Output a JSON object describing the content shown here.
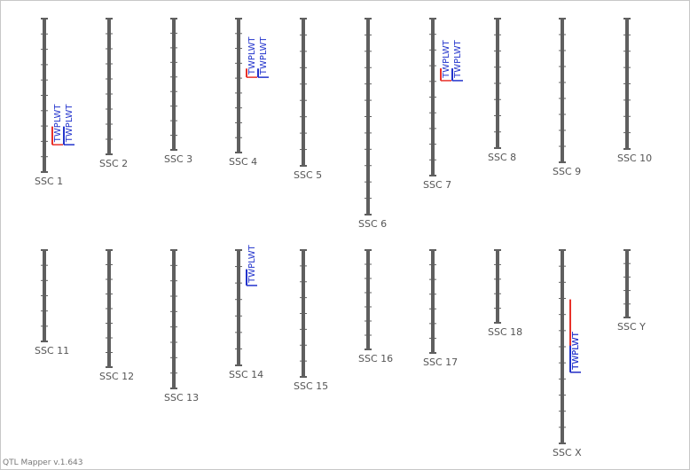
{
  "app": {
    "version_text": "QTL Mapper v.1.643"
  },
  "colors": {
    "chromosome": "#5f5f5f",
    "tick": "#5f5f5f",
    "label": "#555555",
    "qtl_red": "#e8312a",
    "qtl_blue": "#2233cc"
  },
  "chromosomes": [
    {
      "id": "chr-1",
      "label": "SSC 1",
      "ticks": 9,
      "qtls": [
        {
          "label": "TWPLWT",
          "color": "red",
          "offset": 0,
          "start": 0.703,
          "end": 0.822
        },
        {
          "label": "TWPLWT",
          "color": "blue",
          "offset": 1,
          "start": 0.703,
          "end": 0.822
        }
      ]
    },
    {
      "id": "chr-2",
      "label": "SSC 2",
      "ticks": 8,
      "qtls": []
    },
    {
      "id": "chr-3",
      "label": "SSC 3",
      "ticks": 8,
      "qtls": []
    },
    {
      "id": "chr-4",
      "label": "SSC 4",
      "ticks": 8,
      "qtls": [
        {
          "label": "TWPLWT",
          "color": "red",
          "offset": 0,
          "start": 0.373,
          "end": 0.438
        },
        {
          "label": "TWPLWT",
          "color": "blue",
          "offset": 1,
          "start": 0.373,
          "end": 0.438
        }
      ]
    },
    {
      "id": "chr-5",
      "label": "SSC 5",
      "ticks": 8,
      "qtls": []
    },
    {
      "id": "chr-6",
      "label": "SSC 6",
      "ticks": 11,
      "qtls": []
    },
    {
      "id": "chr-7",
      "label": "SSC 7",
      "ticks": 9,
      "qtls": [
        {
          "label": "TWPLWT",
          "color": "red",
          "offset": 0,
          "start": 0.317,
          "end": 0.395
        },
        {
          "label": "TWPLWT",
          "color": "blue",
          "offset": 1,
          "start": 0.317,
          "end": 0.395
        }
      ]
    },
    {
      "id": "chr-8",
      "label": "SSC 8",
      "ticks": 7,
      "qtls": []
    },
    {
      "id": "chr-9",
      "label": "SSC 9",
      "ticks": 8,
      "qtls": []
    },
    {
      "id": "chr-10",
      "label": "SSC 10",
      "ticks": 7,
      "qtls": []
    },
    {
      "id": "chr-11",
      "label": "SSC 11",
      "ticks": 5,
      "qtls": []
    },
    {
      "id": "chr-12",
      "label": "SSC 12",
      "ticks": 7,
      "qtls": []
    },
    {
      "id": "chr-13",
      "label": "SSC 13",
      "ticks": 8,
      "qtls": []
    },
    {
      "id": "chr-14",
      "label": "SSC 14",
      "ticks": 6,
      "qtls": [
        {
          "label": "TWPLWT",
          "color": "blue",
          "offset": 0,
          "start": 0.166,
          "end": 0.307
        }
      ]
    },
    {
      "id": "chr-15",
      "label": "SSC 15",
      "ticks": 7,
      "qtls": []
    },
    {
      "id": "chr-16",
      "label": "SSC 16",
      "ticks": 6,
      "qtls": []
    },
    {
      "id": "chr-17",
      "label": "SSC 17",
      "ticks": 6,
      "qtls": []
    },
    {
      "id": "chr-18",
      "label": "SSC 18",
      "ticks": 4,
      "qtls": []
    },
    {
      "id": "chr-x",
      "label": "SSC X",
      "ticks": 11,
      "qtls": [
        {
          "label": "TWPLWT",
          "color": "red",
          "offset": 0,
          "start": 0.255,
          "end": 0.632
        },
        {
          "label": "TWPLWT",
          "color": "blue",
          "offset": 0,
          "start": 0.494,
          "end": 0.632
        }
      ]
    },
    {
      "id": "chr-y",
      "label": "SSC Y",
      "ticks": 4,
      "qtls": []
    }
  ]
}
